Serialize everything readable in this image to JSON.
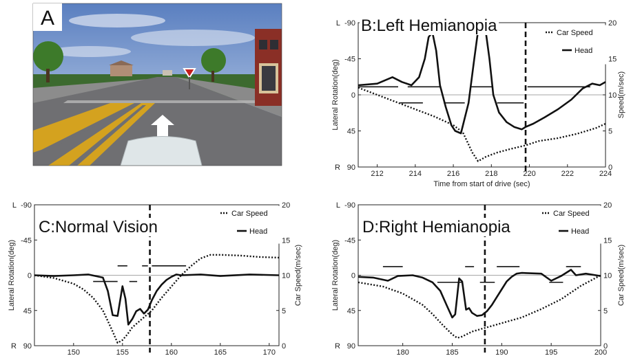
{
  "panel_a": {
    "letter": "A"
  },
  "chart_data": [
    {
      "id": "B",
      "type": "line",
      "title": "B:Left Hemianopia",
      "xlabel": "Time from start of drive (sec)",
      "ylabel_left": "Lateral Rotation(deg)",
      "ylabel_right": "Speed(m/sec)",
      "xlim": [
        211,
        224
      ],
      "xticks": [
        "212",
        "214",
        "216",
        "218",
        "220",
        "222",
        "224"
      ],
      "ylim_left": [
        -90,
        90
      ],
      "yticks_left": [
        {
          "value": -90,
          "label": "-90",
          "side": "L"
        },
        {
          "value": -45,
          "label": "-45",
          "side": ""
        },
        {
          "value": 0,
          "label": "0",
          "side": ""
        },
        {
          "value": 45,
          "label": "45",
          "side": ""
        },
        {
          "value": 90,
          "label": "90",
          "side": "R"
        }
      ],
      "ylim_right": [
        0,
        20
      ],
      "yticks_right": [
        "0",
        "5",
        "10",
        "15",
        "20"
      ],
      "legend": [
        "Car Speed",
        "Head"
      ],
      "vline_x": 219.8,
      "series": [
        {
          "name": "Head",
          "style": "solid",
          "x": [
            211,
            212,
            212.5,
            212.8,
            213.3,
            213.8,
            214.2,
            214.5,
            214.7,
            214.9,
            215.1,
            215.3,
            215.6,
            215.9,
            216.1,
            216.4,
            216.8,
            217.1,
            217.3,
            217.5,
            217.7,
            217.9,
            218.1,
            218.4,
            218.8,
            219.2,
            219.6,
            219.8,
            220.2,
            220.8,
            221.5,
            222.2,
            222.8,
            223.3,
            223.7,
            224
          ],
          "y": [
            -12,
            -14,
            -19,
            -22,
            -16,
            -12,
            -22,
            -45,
            -72,
            -78,
            -55,
            -12,
            15,
            38,
            45,
            48,
            10,
            -45,
            -80,
            -88,
            -80,
            -45,
            0,
            22,
            34,
            40,
            43,
            40,
            36,
            28,
            18,
            6,
            -8,
            -14,
            -12,
            -16
          ]
        },
        {
          "name": "Car Speed",
          "style": "dotted",
          "axis": "right",
          "x": [
            211,
            212,
            213,
            214,
            215,
            216,
            216.5,
            217,
            217.3,
            217.7,
            218.3,
            219,
            219.8,
            220.5,
            221.5,
            222.5,
            223.5,
            224
          ],
          "y": [
            11.0,
            10.0,
            9.0,
            8.0,
            7.0,
            5.8,
            4.8,
            2.0,
            0.8,
            1.4,
            2.0,
            2.5,
            3.0,
            3.6,
            4.0,
            4.6,
            5.4,
            6.0
          ]
        }
      ],
      "fixation_segments": [
        {
          "x": [
            211,
            213.1
          ],
          "y": -10
        },
        {
          "x": [
            213.6,
            215.3
          ],
          "y": -10
        },
        {
          "x": [
            213.2,
            214.4
          ],
          "y": 10
        },
        {
          "x": [
            215.5,
            216.6
          ],
          "y": 10
        },
        {
          "x": [
            216.9,
            218.1
          ],
          "y": -10
        },
        {
          "x": [
            218.3,
            219.7
          ],
          "y": 10
        },
        {
          "x": [
            219.9,
            223.2
          ],
          "y": -10
        }
      ]
    },
    {
      "id": "C",
      "type": "line",
      "title": "C:Normal Vision",
      "ylabel_left": "Lateral Rotation(deg)",
      "ylabel_right": "Car Speed(m/sec)",
      "xlim": [
        146,
        171
      ],
      "xticks": [
        "150",
        "155",
        "160",
        "165",
        "170"
      ],
      "ylim_left": [
        -90,
        90
      ],
      "yticks_left": [
        {
          "value": -90,
          "label": "-90",
          "side": "L"
        },
        {
          "value": -45,
          "label": "-45",
          "side": ""
        },
        {
          "value": 0,
          "label": "0",
          "side": ""
        },
        {
          "value": 45,
          "label": "45",
          "side": ""
        },
        {
          "value": 90,
          "label": "90",
          "side": "R"
        }
      ],
      "ylim_right": [
        0,
        20
      ],
      "yticks_right": [
        "0",
        "5",
        "10",
        "15",
        "20"
      ],
      "legend": [
        "Car Speed",
        "Head"
      ],
      "vline_x": 157.8,
      "series": [
        {
          "name": "Head",
          "style": "solid",
          "x": [
            146,
            148,
            150,
            151.5,
            153,
            153.5,
            154,
            154.5,
            155,
            155.3,
            155.6,
            156,
            156.4,
            156.8,
            157.2,
            157.6,
            158,
            158.5,
            159,
            159.5,
            160,
            160.5,
            161,
            163,
            165,
            168,
            171
          ],
          "y": [
            0,
            1,
            0,
            -1,
            3,
            20,
            51,
            52,
            14,
            30,
            63,
            56,
            46,
            43,
            49,
            44,
            32,
            20,
            12,
            6,
            2,
            -1,
            0,
            -1,
            1,
            -1,
            0
          ]
        },
        {
          "name": "Car Speed",
          "style": "dotted",
          "axis": "right",
          "x": [
            146,
            148,
            150,
            151,
            152,
            153,
            153.5,
            154,
            154.5,
            155,
            155.5,
            156,
            157,
            158,
            159,
            160,
            161,
            162,
            163,
            164,
            165,
            167,
            169,
            171
          ],
          "y": [
            10,
            9.6,
            8.8,
            8.0,
            6.8,
            5.0,
            3.5,
            2.0,
            0.4,
            0.8,
            1.6,
            2.6,
            3.8,
            5.0,
            6.8,
            8.4,
            10.0,
            11.3,
            12.4,
            12.9,
            12.9,
            12.8,
            12.6,
            12.5
          ]
        }
      ],
      "fixation_segments": [
        {
          "x": [
            152,
            154.5
          ],
          "y": 8
        },
        {
          "x": [
            154.5,
            155.5
          ],
          "y": -12
        },
        {
          "x": [
            155.7,
            156.5
          ],
          "y": 8
        },
        {
          "x": [
            157,
            157.6
          ],
          "y": -12
        },
        {
          "x": [
            158,
            161.5
          ],
          "y": -12
        }
      ]
    },
    {
      "id": "D",
      "type": "line",
      "title": "D:Right Hemianopia",
      "ylabel_left": "Lateral Rotation(deg)",
      "ylabel_right": "Car Speed(m/sec)",
      "xlim": [
        175.5,
        200
      ],
      "xticks": [
        "180",
        "185",
        "190",
        "195",
        "200"
      ],
      "ylim_left": [
        -90,
        90
      ],
      "yticks_left": [
        {
          "value": -90,
          "label": "-90",
          "side": "L"
        },
        {
          "value": -45,
          "label": "-45",
          "side": ""
        },
        {
          "value": 0,
          "label": "0",
          "side": ""
        },
        {
          "value": 45,
          "label": "45",
          "side": ""
        },
        {
          "value": 90,
          "label": "90",
          "side": "R"
        }
      ],
      "ylim_right": [
        0,
        20
      ],
      "yticks_right": [
        "0",
        "5",
        "10",
        "15",
        "20"
      ],
      "legend": [
        "Car Speed",
        "Head"
      ],
      "vline_x": 188.3,
      "series": [
        {
          "name": "Head",
          "style": "solid",
          "x": [
            175.5,
            177,
            178.5,
            179.5,
            181,
            182,
            183,
            183.8,
            184.5,
            185,
            185.3,
            185.7,
            186,
            186.4,
            186.7,
            187,
            187.5,
            188,
            188.5,
            189,
            189.5,
            190,
            190.5,
            191,
            191.5,
            192,
            194,
            195,
            196,
            197,
            197.5,
            198.5,
            200
          ],
          "y": [
            2,
            3,
            7,
            1,
            0,
            3,
            9,
            20,
            40,
            54,
            50,
            4,
            8,
            44,
            42,
            48,
            52,
            51,
            46,
            38,
            28,
            18,
            8,
            2,
            -2,
            -3,
            -2,
            7,
            1,
            -7,
            0,
            -2,
            1
          ]
        },
        {
          "name": "Car Speed",
          "style": "dotted",
          "axis": "right",
          "x": [
            175.5,
            178,
            180,
            182,
            183,
            184,
            185,
            185.5,
            186,
            187,
            188,
            190,
            192,
            194,
            196,
            198,
            200
          ],
          "y": [
            9.0,
            8.4,
            7.4,
            5.8,
            4.5,
            3.0,
            1.6,
            1.1,
            1.3,
            2.0,
            2.4,
            3.2,
            4.0,
            5.2,
            6.6,
            8.5,
            10.0
          ]
        }
      ],
      "fixation_segments": [
        {
          "x": [
            178,
            180
          ],
          "y": -11
        },
        {
          "x": [
            183.5,
            186
          ],
          "y": 9
        },
        {
          "x": [
            186.3,
            187.2
          ],
          "y": -11
        },
        {
          "x": [
            187.8,
            189.3
          ],
          "y": 9
        },
        {
          "x": [
            189.5,
            191.8
          ],
          "y": -11
        },
        {
          "x": [
            194.8,
            196.2
          ],
          "y": 9
        },
        {
          "x": [
            196.5,
            198
          ],
          "y": -11
        }
      ]
    }
  ]
}
